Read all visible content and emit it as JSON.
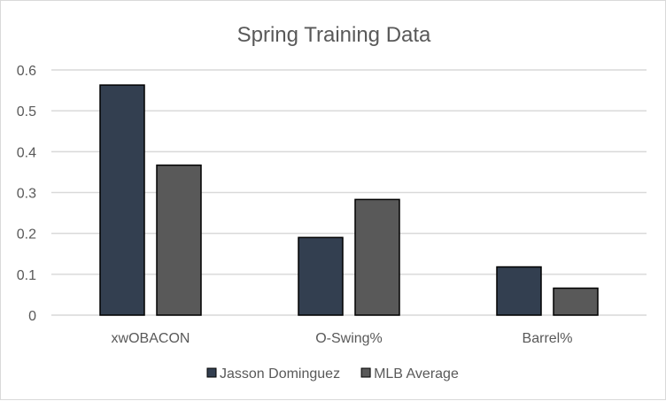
{
  "chart_data": {
    "type": "bar",
    "title": "Spring Training Data",
    "xlabel": "",
    "ylabel": "",
    "categories": [
      "xwOBACON",
      "O-Swing%",
      "Barrel%"
    ],
    "series": [
      {
        "name": "Jasson Dominguez",
        "color": "#333f50",
        "values": [
          0.563,
          0.19,
          0.118
        ]
      },
      {
        "name": "MLB Average",
        "color": "#595959",
        "values": [
          0.367,
          0.283,
          0.066
        ]
      }
    ],
    "ylim": [
      0,
      0.6
    ],
    "yticks": [
      "0",
      "0.1",
      "0.2",
      "0.3",
      "0.4",
      "0.5",
      "0.6"
    ],
    "grid": true,
    "legend": "bottom"
  }
}
